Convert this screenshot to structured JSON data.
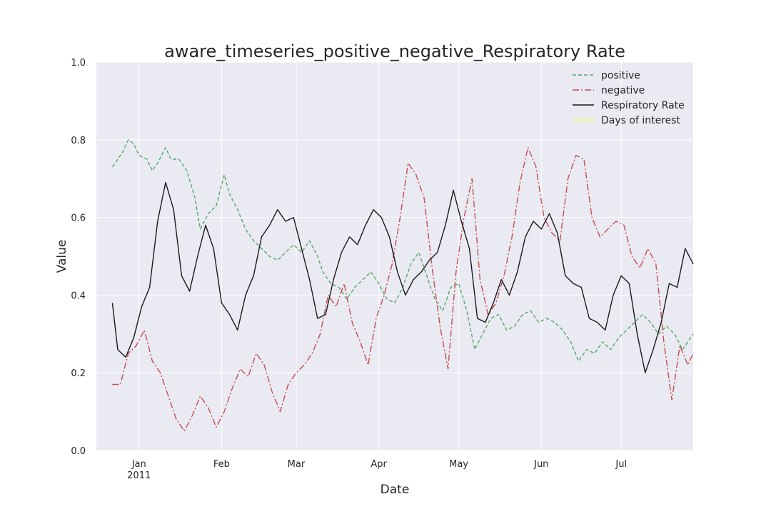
{
  "chart_data": {
    "type": "line",
    "title": "aware_timeseries_positive_negative_Respiratory Rate",
    "xlabel": "Date",
    "ylabel": "Value",
    "xlim": [
      "2010-12-16",
      "2011-07-28"
    ],
    "ylim": [
      0.0,
      1.0
    ],
    "yticks": [
      "0.0",
      "0.2",
      "0.4",
      "0.6",
      "0.8",
      "1.0"
    ],
    "xticks": [
      {
        "date": "2011-01-01",
        "label": "Jan",
        "sublabel": "2011"
      },
      {
        "date": "2011-02-01",
        "label": "Feb",
        "sublabel": ""
      },
      {
        "date": "2011-03-01",
        "label": "Mar",
        "sublabel": ""
      },
      {
        "date": "2011-04-01",
        "label": "Apr",
        "sublabel": ""
      },
      {
        "date": "2011-05-01",
        "label": "May",
        "sublabel": ""
      },
      {
        "date": "2011-06-01",
        "label": "Jun",
        "sublabel": ""
      },
      {
        "date": "2011-07-01",
        "label": "Jul",
        "sublabel": ""
      }
    ],
    "grid": true,
    "legend_position": "top-right",
    "background": "#eaeaf2",
    "legend": [
      {
        "label": "positive",
        "color": "#55a868",
        "style": "dashed"
      },
      {
        "label": "negative",
        "color": "#c44e52",
        "style": "dashdot"
      },
      {
        "label": "Respiratory Rate",
        "color": "#1a1a1a",
        "style": "solid"
      },
      {
        "label": "Days of interest",
        "color": "#eeeecc",
        "style": "band"
      }
    ],
    "series": [
      {
        "name": "positive",
        "color": "#55a868",
        "style": "dashed",
        "points": [
          [
            "2010-12-22",
            0.73
          ],
          [
            "2010-12-24",
            0.75
          ],
          [
            "2010-12-26",
            0.77
          ],
          [
            "2010-12-28",
            0.8
          ],
          [
            "2010-12-30",
            0.79
          ],
          [
            "2011-01-01",
            0.76
          ],
          [
            "2011-01-04",
            0.75
          ],
          [
            "2011-01-06",
            0.72
          ],
          [
            "2011-01-08",
            0.74
          ],
          [
            "2011-01-11",
            0.78
          ],
          [
            "2011-01-13",
            0.75
          ],
          [
            "2011-01-16",
            0.75
          ],
          [
            "2011-01-19",
            0.72
          ],
          [
            "2011-01-22",
            0.65
          ],
          [
            "2011-01-24",
            0.57
          ],
          [
            "2011-01-27",
            0.61
          ],
          [
            "2011-01-30",
            0.63
          ],
          [
            "2011-02-02",
            0.71
          ],
          [
            "2011-02-04",
            0.66
          ],
          [
            "2011-02-07",
            0.62
          ],
          [
            "2011-02-10",
            0.57
          ],
          [
            "2011-02-13",
            0.54
          ],
          [
            "2011-02-16",
            0.52
          ],
          [
            "2011-02-19",
            0.5
          ],
          [
            "2011-02-22",
            0.49
          ],
          [
            "2011-02-25",
            0.51
          ],
          [
            "2011-02-28",
            0.53
          ],
          [
            "2011-03-03",
            0.51
          ],
          [
            "2011-03-06",
            0.54
          ],
          [
            "2011-03-09",
            0.5
          ],
          [
            "2011-03-11",
            0.46
          ],
          [
            "2011-03-14",
            0.43
          ],
          [
            "2011-03-17",
            0.42
          ],
          [
            "2011-03-20",
            0.39
          ],
          [
            "2011-03-23",
            0.42
          ],
          [
            "2011-03-26",
            0.44
          ],
          [
            "2011-03-29",
            0.46
          ],
          [
            "2011-04-01",
            0.43
          ],
          [
            "2011-04-04",
            0.39
          ],
          [
            "2011-04-07",
            0.38
          ],
          [
            "2011-04-10",
            0.42
          ],
          [
            "2011-04-13",
            0.48
          ],
          [
            "2011-04-16",
            0.51
          ],
          [
            "2011-04-19",
            0.45
          ],
          [
            "2011-04-22",
            0.39
          ],
          [
            "2011-04-25",
            0.36
          ],
          [
            "2011-04-28",
            0.42
          ],
          [
            "2011-05-01",
            0.43
          ],
          [
            "2011-05-04",
            0.36
          ],
          [
            "2011-05-07",
            0.26
          ],
          [
            "2011-05-10",
            0.3
          ],
          [
            "2011-05-13",
            0.34
          ],
          [
            "2011-05-16",
            0.35
          ],
          [
            "2011-05-19",
            0.31
          ],
          [
            "2011-05-22",
            0.32
          ],
          [
            "2011-05-25",
            0.35
          ],
          [
            "2011-05-28",
            0.36
          ],
          [
            "2011-05-31",
            0.33
          ],
          [
            "2011-06-03",
            0.34
          ],
          [
            "2011-06-06",
            0.33
          ],
          [
            "2011-06-09",
            0.31
          ],
          [
            "2011-06-12",
            0.28
          ],
          [
            "2011-06-15",
            0.23
          ],
          [
            "2011-06-18",
            0.26
          ],
          [
            "2011-06-21",
            0.25
          ],
          [
            "2011-06-24",
            0.28
          ],
          [
            "2011-06-27",
            0.26
          ],
          [
            "2011-06-30",
            0.29
          ],
          [
            "2011-07-03",
            0.31
          ],
          [
            "2011-07-06",
            0.33
          ],
          [
            "2011-07-09",
            0.35
          ],
          [
            "2011-07-12",
            0.33
          ],
          [
            "2011-07-15",
            0.3
          ],
          [
            "2011-07-18",
            0.32
          ],
          [
            "2011-07-21",
            0.3
          ],
          [
            "2011-07-24",
            0.26
          ],
          [
            "2011-07-28",
            0.3
          ]
        ]
      },
      {
        "name": "negative",
        "color": "#c44e52",
        "style": "dashdot",
        "points": [
          [
            "2010-12-22",
            0.17
          ],
          [
            "2010-12-25",
            0.17
          ],
          [
            "2010-12-28",
            0.25
          ],
          [
            "2010-12-31",
            0.27
          ],
          [
            "2011-01-03",
            0.31
          ],
          [
            "2011-01-06",
            0.23
          ],
          [
            "2011-01-09",
            0.2
          ],
          [
            "2011-01-12",
            0.14
          ],
          [
            "2011-01-15",
            0.08
          ],
          [
            "2011-01-18",
            0.05
          ],
          [
            "2011-01-21",
            0.09
          ],
          [
            "2011-01-24",
            0.14
          ],
          [
            "2011-01-27",
            0.11
          ],
          [
            "2011-01-30",
            0.06
          ],
          [
            "2011-02-02",
            0.1
          ],
          [
            "2011-02-05",
            0.16
          ],
          [
            "2011-02-08",
            0.21
          ],
          [
            "2011-02-11",
            0.19
          ],
          [
            "2011-02-14",
            0.25
          ],
          [
            "2011-02-17",
            0.22
          ],
          [
            "2011-02-20",
            0.15
          ],
          [
            "2011-02-23",
            0.1
          ],
          [
            "2011-02-26",
            0.17
          ],
          [
            "2011-03-01",
            0.2
          ],
          [
            "2011-03-04",
            0.22
          ],
          [
            "2011-03-07",
            0.25
          ],
          [
            "2011-03-10",
            0.3
          ],
          [
            "2011-03-13",
            0.4
          ],
          [
            "2011-03-16",
            0.37
          ],
          [
            "2011-03-19",
            0.43
          ],
          [
            "2011-03-22",
            0.33
          ],
          [
            "2011-03-25",
            0.28
          ],
          [
            "2011-03-28",
            0.22
          ],
          [
            "2011-03-31",
            0.34
          ],
          [
            "2011-04-03",
            0.4
          ],
          [
            "2011-04-06",
            0.48
          ],
          [
            "2011-04-09",
            0.6
          ],
          [
            "2011-04-12",
            0.74
          ],
          [
            "2011-04-15",
            0.71
          ],
          [
            "2011-04-18",
            0.65
          ],
          [
            "2011-04-21",
            0.47
          ],
          [
            "2011-04-24",
            0.32
          ],
          [
            "2011-04-27",
            0.21
          ],
          [
            "2011-04-30",
            0.46
          ],
          [
            "2011-05-03",
            0.6
          ],
          [
            "2011-05-06",
            0.7
          ],
          [
            "2011-05-09",
            0.44
          ],
          [
            "2011-05-12",
            0.35
          ],
          [
            "2011-05-15",
            0.38
          ],
          [
            "2011-05-18",
            0.45
          ],
          [
            "2011-05-21",
            0.55
          ],
          [
            "2011-05-24",
            0.69
          ],
          [
            "2011-05-27",
            0.78
          ],
          [
            "2011-05-30",
            0.73
          ],
          [
            "2011-06-02",
            0.6
          ],
          [
            "2011-06-05",
            0.56
          ],
          [
            "2011-06-08",
            0.54
          ],
          [
            "2011-06-11",
            0.7
          ],
          [
            "2011-06-14",
            0.76
          ],
          [
            "2011-06-17",
            0.75
          ],
          [
            "2011-06-20",
            0.6
          ],
          [
            "2011-06-23",
            0.55
          ],
          [
            "2011-06-26",
            0.57
          ],
          [
            "2011-06-29",
            0.59
          ],
          [
            "2011-07-02",
            0.58
          ],
          [
            "2011-07-05",
            0.5
          ],
          [
            "2011-07-08",
            0.47
          ],
          [
            "2011-07-11",
            0.52
          ],
          [
            "2011-07-14",
            0.48
          ],
          [
            "2011-07-17",
            0.28
          ],
          [
            "2011-07-20",
            0.13
          ],
          [
            "2011-07-23",
            0.27
          ],
          [
            "2011-07-26",
            0.22
          ],
          [
            "2011-07-28",
            0.25
          ]
        ]
      },
      {
        "name": "Respiratory Rate",
        "color": "#1a1a1a",
        "style": "solid",
        "points": [
          [
            "2010-12-22",
            0.38
          ],
          [
            "2010-12-24",
            0.26
          ],
          [
            "2010-12-27",
            0.24
          ],
          [
            "2010-12-30",
            0.29
          ],
          [
            "2011-01-02",
            0.37
          ],
          [
            "2011-01-05",
            0.42
          ],
          [
            "2011-01-08",
            0.59
          ],
          [
            "2011-01-11",
            0.69
          ],
          [
            "2011-01-14",
            0.62
          ],
          [
            "2011-01-17",
            0.45
          ],
          [
            "2011-01-20",
            0.41
          ],
          [
            "2011-01-23",
            0.5
          ],
          [
            "2011-01-26",
            0.58
          ],
          [
            "2011-01-29",
            0.52
          ],
          [
            "2011-02-01",
            0.38
          ],
          [
            "2011-02-04",
            0.35
          ],
          [
            "2011-02-07",
            0.31
          ],
          [
            "2011-02-10",
            0.4
          ],
          [
            "2011-02-13",
            0.45
          ],
          [
            "2011-02-16",
            0.55
          ],
          [
            "2011-02-19",
            0.58
          ],
          [
            "2011-02-22",
            0.62
          ],
          [
            "2011-02-25",
            0.59
          ],
          [
            "2011-02-28",
            0.6
          ],
          [
            "2011-03-03",
            0.52
          ],
          [
            "2011-03-06",
            0.44
          ],
          [
            "2011-03-09",
            0.34
          ],
          [
            "2011-03-12",
            0.35
          ],
          [
            "2011-03-15",
            0.44
          ],
          [
            "2011-03-18",
            0.51
          ],
          [
            "2011-03-21",
            0.55
          ],
          [
            "2011-03-24",
            0.53
          ],
          [
            "2011-03-27",
            0.58
          ],
          [
            "2011-03-30",
            0.62
          ],
          [
            "2011-04-02",
            0.6
          ],
          [
            "2011-04-05",
            0.55
          ],
          [
            "2011-04-08",
            0.46
          ],
          [
            "2011-04-11",
            0.4
          ],
          [
            "2011-04-14",
            0.44
          ],
          [
            "2011-04-17",
            0.46
          ],
          [
            "2011-04-20",
            0.49
          ],
          [
            "2011-04-23",
            0.51
          ],
          [
            "2011-04-26",
            0.58
          ],
          [
            "2011-04-29",
            0.67
          ],
          [
            "2011-05-02",
            0.59
          ],
          [
            "2011-05-05",
            0.52
          ],
          [
            "2011-05-08",
            0.34
          ],
          [
            "2011-05-11",
            0.33
          ],
          [
            "2011-05-14",
            0.38
          ],
          [
            "2011-05-17",
            0.44
          ],
          [
            "2011-05-20",
            0.4
          ],
          [
            "2011-05-23",
            0.46
          ],
          [
            "2011-05-26",
            0.55
          ],
          [
            "2011-05-29",
            0.59
          ],
          [
            "2011-06-01",
            0.57
          ],
          [
            "2011-06-04",
            0.61
          ],
          [
            "2011-06-07",
            0.56
          ],
          [
            "2011-06-10",
            0.45
          ],
          [
            "2011-06-13",
            0.43
          ],
          [
            "2011-06-16",
            0.42
          ],
          [
            "2011-06-19",
            0.34
          ],
          [
            "2011-06-22",
            0.33
          ],
          [
            "2011-06-25",
            0.31
          ],
          [
            "2011-06-28",
            0.4
          ],
          [
            "2011-07-01",
            0.45
          ],
          [
            "2011-07-04",
            0.43
          ],
          [
            "2011-07-07",
            0.3
          ],
          [
            "2011-07-10",
            0.2
          ],
          [
            "2011-07-13",
            0.26
          ],
          [
            "2011-07-16",
            0.33
          ],
          [
            "2011-07-19",
            0.43
          ],
          [
            "2011-07-22",
            0.42
          ],
          [
            "2011-07-25",
            0.52
          ],
          [
            "2011-07-28",
            0.48
          ]
        ]
      }
    ]
  }
}
